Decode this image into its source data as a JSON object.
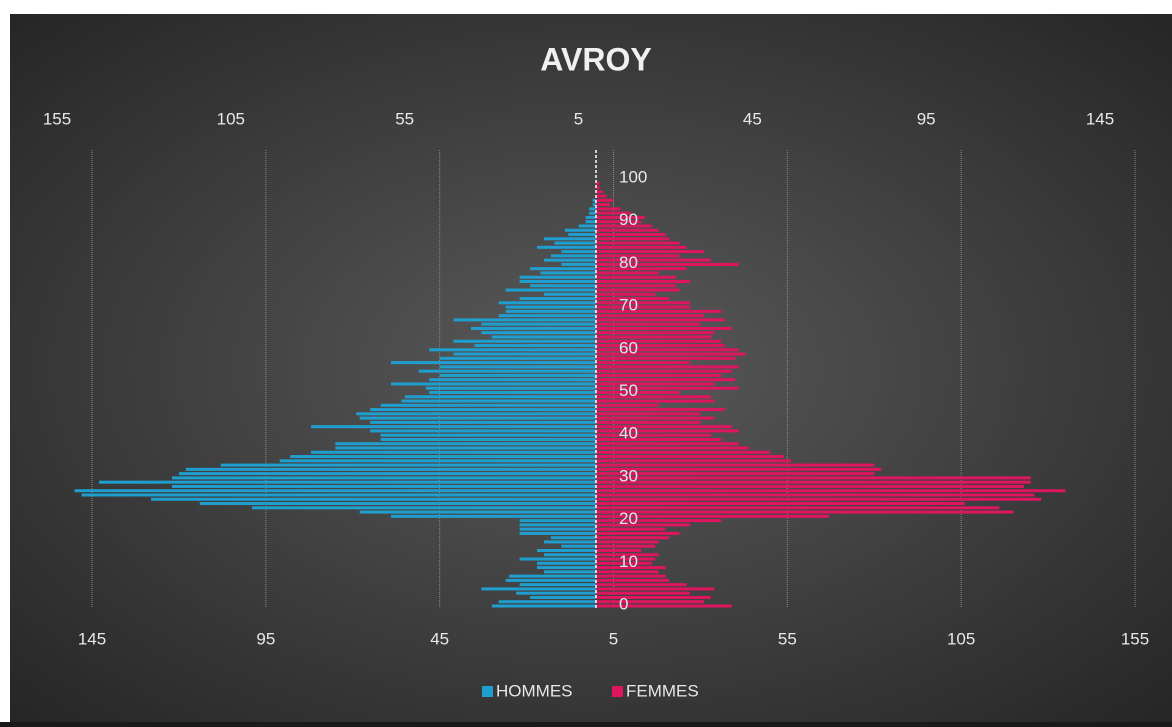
{
  "chart_data": {
    "type": "pyramid",
    "title": "AVROY",
    "categories": [
      0,
      null,
      null,
      null,
      null,
      null,
      null,
      null,
      null,
      null,
      10,
      null,
      null,
      null,
      null,
      null,
      null,
      null,
      null,
      null,
      20,
      null,
      null,
      null,
      null,
      null,
      null,
      null,
      null,
      null,
      30,
      null,
      null,
      null,
      null,
      null,
      null,
      null,
      null,
      null,
      40,
      null,
      null,
      null,
      null,
      null,
      null,
      null,
      null,
      null,
      50,
      null,
      null,
      null,
      null,
      null,
      null,
      null,
      null,
      null,
      60,
      null,
      null,
      null,
      null,
      null,
      null,
      null,
      null,
      null,
      70,
      null,
      null,
      null,
      null,
      null,
      null,
      null,
      null,
      null,
      80,
      null,
      null,
      null,
      null,
      null,
      null,
      null,
      null,
      null,
      90,
      null,
      null,
      null,
      null,
      null,
      null,
      null,
      null,
      null,
      100
    ],
    "series": [
      {
        "name": "HOMMES",
        "color": "#1f9fd0",
        "values": [
          30,
          28,
          19,
          23,
          33,
          22,
          26,
          25,
          15,
          17,
          17,
          22,
          15,
          17,
          10,
          15,
          13,
          22,
          22,
          22,
          22,
          59,
          68,
          99,
          114,
          128,
          148,
          150,
          122,
          143,
          122,
          120,
          118,
          108,
          91,
          88,
          82,
          75,
          75,
          62,
          62,
          65,
          82,
          65,
          68,
          69,
          65,
          62,
          56,
          55,
          48,
          49,
          59,
          48,
          45,
          51,
          45,
          59,
          45,
          41,
          48,
          35,
          41,
          30,
          33,
          36,
          33,
          41,
          28,
          26,
          26,
          28,
          22,
          15,
          26,
          19,
          22,
          22,
          16,
          19,
          10,
          15,
          13,
          10,
          17,
          12,
          15,
          8,
          9,
          5,
          3,
          3,
          2,
          2,
          1,
          1,
          0,
          0,
          0,
          0,
          0
        ]
      },
      {
        "name": "FEMMES",
        "color": "#e0155f",
        "values": [
          39,
          31,
          33,
          27,
          34,
          26,
          21,
          20,
          18,
          20,
          16,
          17,
          18,
          13,
          17,
          18,
          21,
          24,
          20,
          27,
          36,
          67,
          120,
          116,
          106,
          128,
          126,
          135,
          123,
          125,
          125,
          80,
          82,
          80,
          56,
          54,
          50,
          44,
          41,
          36,
          33,
          41,
          39,
          30,
          34,
          30,
          37,
          18,
          34,
          33,
          24,
          41,
          34,
          40,
          36,
          39,
          41,
          27,
          40,
          43,
          41,
          37,
          36,
          33,
          34,
          39,
          30,
          37,
          31,
          36,
          27,
          27,
          21,
          17,
          24,
          23,
          27,
          23,
          18,
          26,
          41,
          33,
          24,
          31,
          26,
          24,
          21,
          20,
          18,
          16,
          13,
          14,
          10,
          7,
          4,
          5,
          3,
          2,
          1,
          1,
          0
        ]
      }
    ],
    "xlim": [
      -145,
      155
    ],
    "xticks": [
      {
        "value": -145,
        "label": "145"
      },
      {
        "value": -95,
        "label": "95"
      },
      {
        "value": -45,
        "label": "45"
      },
      5,
      55,
      105,
      155
    ],
    "x2lim": [
      -155,
      145
    ],
    "x2ticks": [
      {
        "value": -155,
        "label": "155"
      },
      {
        "value": -105,
        "label": "105"
      },
      {
        "value": -55,
        "label": "55"
      },
      {
        "value": -5,
        "label": "5"
      },
      45,
      95,
      145
    ],
    "grid": true,
    "legend": "bottom"
  }
}
